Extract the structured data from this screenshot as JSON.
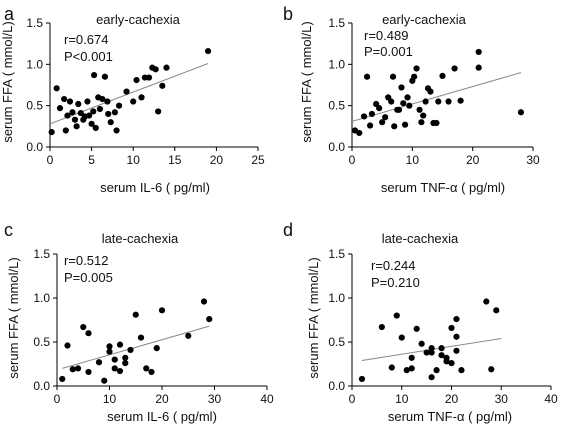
{
  "chart_data": [
    {
      "type": "scatter",
      "panel": "a",
      "title": "early-cachexia",
      "stats": [
        "r=0.674",
        "P<0.001"
      ],
      "xlabel": "serum IL-6 ( pg/ml)",
      "ylabel": "serum FFA ( mmol/L)",
      "xlim": [
        0,
        25
      ],
      "ylim": [
        0,
        1.5
      ],
      "xticks": [
        0,
        5,
        10,
        15,
        20,
        25
      ],
      "yticks": [
        0.0,
        0.5,
        1.0,
        1.5
      ],
      "ytick_labels": [
        "0.0",
        "0.5",
        "1.0",
        "1.5"
      ],
      "trendline": [
        [
          0,
          0.28
        ],
        [
          19,
          1.01
        ]
      ],
      "points": [
        [
          0.2,
          0.18
        ],
        [
          0.8,
          0.71
        ],
        [
          1.2,
          0.47
        ],
        [
          1.7,
          0.58
        ],
        [
          1.9,
          0.2
        ],
        [
          2.1,
          0.38
        ],
        [
          2.4,
          0.55
        ],
        [
          2.7,
          0.42
        ],
        [
          3.0,
          0.33
        ],
        [
          3.2,
          0.25
        ],
        [
          3.4,
          0.52
        ],
        [
          3.7,
          0.41
        ],
        [
          4.0,
          0.33
        ],
        [
          4.2,
          0.37
        ],
        [
          4.5,
          0.55
        ],
        [
          4.7,
          0.38
        ],
        [
          5.0,
          0.28
        ],
        [
          5.2,
          0.43
        ],
        [
          5.3,
          0.87
        ],
        [
          5.5,
          0.23
        ],
        [
          5.8,
          0.6
        ],
        [
          6.0,
          0.46
        ],
        [
          6.3,
          0.58
        ],
        [
          6.6,
          0.85
        ],
        [
          6.9,
          0.55
        ],
        [
          7.0,
          0.4
        ],
        [
          7.3,
          0.3
        ],
        [
          7.8,
          0.42
        ],
        [
          8.0,
          0.2
        ],
        [
          8.3,
          0.5
        ],
        [
          9.2,
          0.67
        ],
        [
          10.0,
          0.55
        ],
        [
          10.4,
          0.81
        ],
        [
          11.0,
          0.6
        ],
        [
          11.4,
          0.84
        ],
        [
          11.9,
          0.84
        ],
        [
          12.3,
          0.96
        ],
        [
          12.7,
          0.94
        ],
        [
          13.0,
          0.43
        ],
        [
          13.5,
          0.74
        ],
        [
          14.0,
          0.96
        ],
        [
          19.0,
          1.16
        ]
      ]
    },
    {
      "type": "scatter",
      "panel": "b",
      "title": "early-cachexia",
      "stats": [
        "r=0.489",
        "P=0.001"
      ],
      "xlabel": "serum TNF-α ( pg/ml)",
      "ylabel": "serum FFA  ( mmol/L)",
      "xlim": [
        0,
        30
      ],
      "ylim": [
        0,
        1.5
      ],
      "xticks": [
        0,
        10,
        20,
        30
      ],
      "yticks": [
        0.0,
        0.5,
        1.0,
        1.5
      ],
      "ytick_labels": [
        "0.0",
        "0.5",
        "1.0",
        "1.5"
      ],
      "trendline": [
        [
          0,
          0.31
        ],
        [
          28,
          0.9
        ]
      ],
      "points": [
        [
          0.5,
          0.2
        ],
        [
          1.2,
          0.17
        ],
        [
          2.0,
          0.37
        ],
        [
          2.5,
          0.85
        ],
        [
          3.0,
          0.26
        ],
        [
          3.3,
          0.4
        ],
        [
          4.0,
          0.52
        ],
        [
          4.5,
          0.47
        ],
        [
          5.0,
          0.3
        ],
        [
          5.5,
          0.36
        ],
        [
          6.0,
          0.6
        ],
        [
          6.5,
          0.55
        ],
        [
          6.8,
          0.85
        ],
        [
          7.0,
          0.25
        ],
        [
          7.5,
          0.45
        ],
        [
          7.8,
          0.45
        ],
        [
          8.2,
          0.72
        ],
        [
          8.5,
          0.53
        ],
        [
          8.8,
          0.27
        ],
        [
          9.2,
          0.6
        ],
        [
          9.5,
          0.5
        ],
        [
          10.0,
          0.8
        ],
        [
          10.3,
          0.85
        ],
        [
          10.7,
          0.95
        ],
        [
          11.2,
          0.45
        ],
        [
          11.5,
          0.3
        ],
        [
          11.8,
          0.38
        ],
        [
          12.2,
          0.55
        ],
        [
          12.6,
          0.71
        ],
        [
          13.0,
          0.67
        ],
        [
          13.5,
          0.29
        ],
        [
          14.0,
          0.29
        ],
        [
          14.3,
          0.55
        ],
        [
          15.0,
          0.86
        ],
        [
          16.0,
          0.55
        ],
        [
          17.0,
          0.95
        ],
        [
          18.0,
          0.56
        ],
        [
          21.0,
          1.15
        ],
        [
          21.0,
          0.96
        ],
        [
          28.0,
          0.42
        ]
      ]
    },
    {
      "type": "scatter",
      "panel": "c",
      "title": "late-cachexia",
      "stats": [
        "r=0.512",
        "P=0.005"
      ],
      "xlabel": "serum IL-6 ( pg/ml)",
      "ylabel": "serum FFA ( mmol/L)",
      "xlim": [
        0,
        40
      ],
      "ylim": [
        0,
        1.5
      ],
      "xticks": [
        0,
        10,
        20,
        30,
        40
      ],
      "yticks": [
        0.0,
        0.5,
        1.0,
        1.5
      ],
      "ytick_labels": [
        "0.0",
        "0.5",
        "1.0",
        "1.5"
      ],
      "trendline": [
        [
          1,
          0.2
        ],
        [
          29,
          0.68
        ]
      ],
      "points": [
        [
          1.0,
          0.08
        ],
        [
          2.0,
          0.46
        ],
        [
          3.0,
          0.19
        ],
        [
          4.0,
          0.2
        ],
        [
          5.0,
          0.67
        ],
        [
          6.0,
          0.16
        ],
        [
          6.0,
          0.6
        ],
        [
          8.0,
          0.27
        ],
        [
          9.0,
          0.06
        ],
        [
          10.0,
          0.45
        ],
        [
          10.0,
          0.39
        ],
        [
          11.0,
          0.2
        ],
        [
          11.0,
          0.3
        ],
        [
          12.0,
          0.17
        ],
        [
          12.0,
          0.47
        ],
        [
          13.0,
          0.32
        ],
        [
          13.0,
          0.26
        ],
        [
          14.0,
          0.41
        ],
        [
          15.0,
          0.81
        ],
        [
          16.0,
          0.55
        ],
        [
          17.0,
          0.2
        ],
        [
          18.0,
          0.16
        ],
        [
          19.0,
          0.43
        ],
        [
          20.0,
          0.86
        ],
        [
          25.0,
          0.57
        ],
        [
          28.0,
          0.96
        ],
        [
          29.0,
          0.76
        ]
      ]
    },
    {
      "type": "scatter",
      "panel": "d",
      "title": "late-cachexia",
      "stats": [
        "r=0.244",
        "P=0.210"
      ],
      "xlabel": "serum TNF-α ( pg/ml)",
      "ylabel": "serum FFA  ( mmol/L)",
      "xlim": [
        0,
        40
      ],
      "ylim": [
        0,
        1.5
      ],
      "xticks": [
        0,
        10,
        20,
        30,
        40
      ],
      "yticks": [
        0.0,
        0.5,
        1.0,
        1.5
      ],
      "ytick_labels": [
        "0.0",
        "0.5",
        "1.0",
        "1.5"
      ],
      "trendline": [
        [
          2,
          0.29
        ],
        [
          30,
          0.54
        ]
      ],
      "points": [
        [
          2.0,
          0.08
        ],
        [
          6.0,
          0.67
        ],
        [
          8.0,
          0.21
        ],
        [
          9.0,
          0.8
        ],
        [
          10.0,
          0.55
        ],
        [
          11.0,
          0.18
        ],
        [
          12.0,
          0.2
        ],
        [
          12.0,
          0.32
        ],
        [
          13.0,
          0.65
        ],
        [
          14.0,
          0.48
        ],
        [
          15.0,
          0.38
        ],
        [
          16.0,
          0.43
        ],
        [
          16.0,
          0.38
        ],
        [
          16.0,
          0.1
        ],
        [
          17.0,
          0.18
        ],
        [
          18.0,
          0.43
        ],
        [
          18.0,
          0.35
        ],
        [
          19.0,
          0.28
        ],
        [
          19.0,
          0.32
        ],
        [
          20.0,
          0.26
        ],
        [
          20.0,
          0.66
        ],
        [
          21.0,
          0.56
        ],
        [
          21.0,
          0.76
        ],
        [
          21.0,
          0.4
        ],
        [
          22.0,
          0.18
        ],
        [
          27.0,
          0.96
        ],
        [
          28.0,
          0.19
        ],
        [
          29.0,
          0.86
        ]
      ]
    }
  ]
}
